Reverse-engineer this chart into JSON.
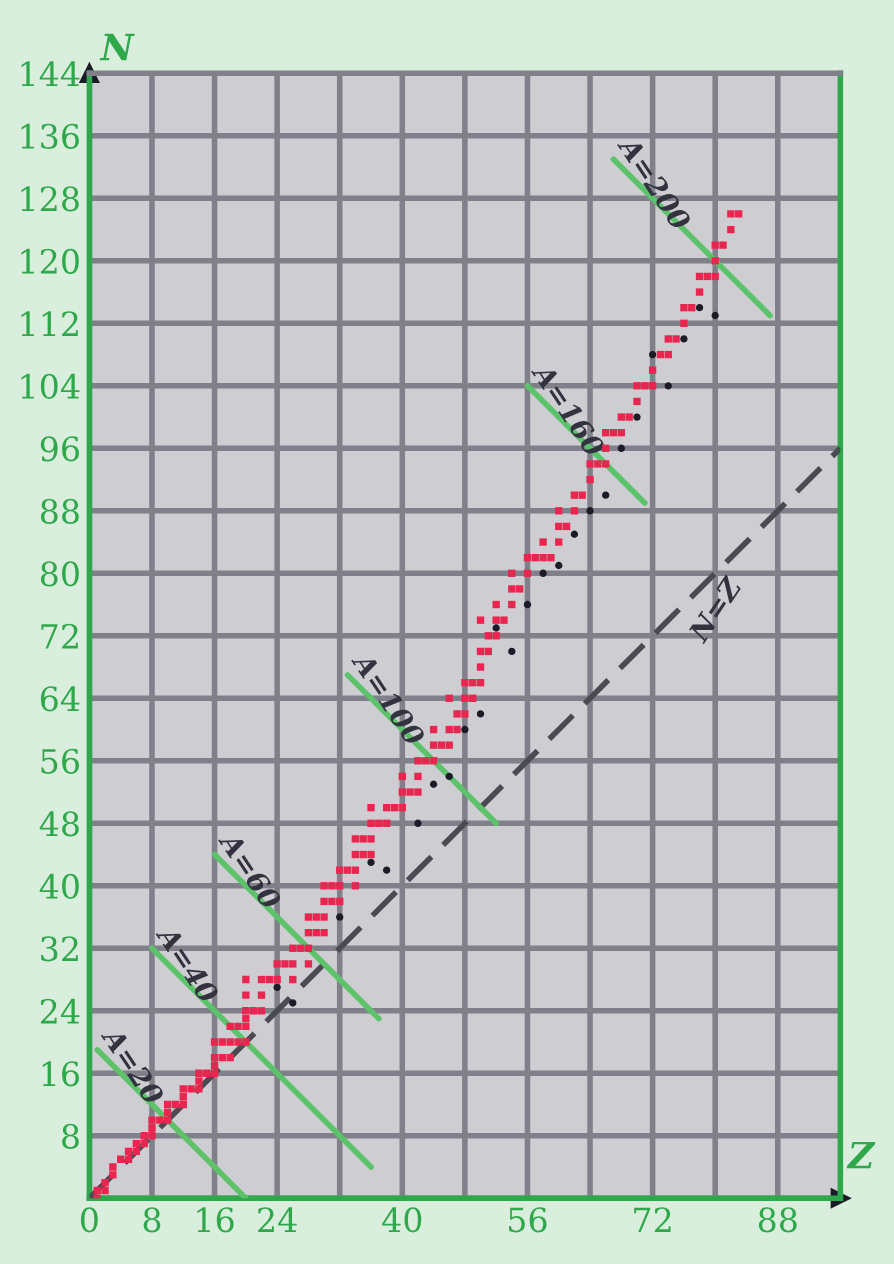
{
  "chart_data": {
    "type": "scatter",
    "xlabel": "Z",
    "ylabel": "N",
    "xlim": [
      0,
      96
    ],
    "ylim": [
      0,
      144
    ],
    "xticks": [
      0,
      8,
      16,
      24,
      {
        "value": 32,
        "label": null
      },
      40,
      {
        "value": 48,
        "label": null
      },
      56,
      {
        "value": 64,
        "label": null
      },
      72,
      {
        "value": 80,
        "label": null
      },
      88
    ],
    "yticks": [
      {
        "value": 0,
        "label": null
      },
      8,
      16,
      24,
      32,
      40,
      48,
      56,
      64,
      72,
      80,
      88,
      96,
      104,
      112,
      120,
      128,
      136,
      144
    ],
    "grid": true,
    "legend": false,
    "marker": "square",
    "series": [
      {
        "type": "line",
        "name": "N=Z",
        "color": "#4a4a52",
        "line_style": "dashed",
        "marker": "none",
        "x": [
          0,
          96
        ],
        "values": [
          0,
          96
        ]
      },
      {
        "type": "line",
        "name": "A=20",
        "color": "#5cc36a",
        "marker": "none",
        "x": [
          1,
          20
        ],
        "values": [
          19,
          0
        ]
      },
      {
        "type": "line",
        "name": "A=40",
        "color": "#5cc36a",
        "marker": "none",
        "x": [
          8,
          36
        ],
        "values": [
          32,
          4
        ]
      },
      {
        "type": "line",
        "name": "A=60",
        "color": "#5cc36a",
        "marker": "none",
        "x": [
          16,
          37
        ],
        "values": [
          44,
          23
        ]
      },
      {
        "type": "line",
        "name": "A=100",
        "color": "#5cc36a",
        "marker": "none",
        "x": [
          33,
          52
        ],
        "values": [
          67,
          48
        ]
      },
      {
        "type": "line",
        "name": "A=160",
        "color": "#5cc36a",
        "marker": "none",
        "x": [
          56,
          71
        ],
        "values": [
          104,
          89
        ]
      },
      {
        "type": "line",
        "name": "A=200",
        "color": "#5cc36a",
        "marker": "none",
        "x": [
          67,
          87
        ],
        "values": [
          133,
          113
        ]
      },
      {
        "type": "scatter",
        "color": "#1c1c28",
        "marker": "circle",
        "x": [
          24,
          26,
          32,
          36,
          38,
          42,
          44,
          46,
          48,
          50,
          52,
          54,
          56,
          58,
          60,
          62,
          64,
          66,
          68,
          70,
          72,
          74,
          76,
          78,
          80
        ],
        "values": [
          27,
          25,
          36,
          43,
          42,
          48,
          53,
          54,
          60,
          62,
          73,
          70,
          76,
          80,
          81,
          85,
          88,
          90,
          96,
          100,
          108,
          104,
          110,
          114,
          113
        ]
      },
      {
        "color": "#e8264f",
        "x": [
          1,
          1,
          2,
          2,
          3,
          3,
          4,
          5,
          5,
          6,
          6,
          7,
          7,
          8,
          8,
          8,
          9,
          10,
          10,
          10,
          11,
          12,
          12,
          12,
          13,
          14,
          14,
          14,
          15,
          16,
          16,
          16,
          16,
          17,
          17,
          18,
          18,
          18,
          19,
          19,
          20,
          20,
          20,
          20,
          20,
          20,
          21,
          22,
          22,
          22,
          23,
          24,
          24,
          25,
          26,
          26,
          26,
          27,
          28,
          28,
          28,
          28,
          29,
          29,
          30,
          30,
          30,
          30,
          31,
          31,
          32,
          32,
          32,
          33,
          34,
          34,
          34,
          34,
          35,
          35,
          36,
          36,
          36,
          36,
          37,
          38,
          38,
          39,
          40,
          40,
          40,
          41,
          42,
          42,
          42,
          43,
          44,
          44,
          44,
          45,
          46,
          46,
          46,
          47,
          47,
          48,
          48,
          48,
          49,
          49,
          50,
          50,
          50,
          50,
          51,
          51,
          52,
          52,
          52,
          53,
          54,
          54,
          54,
          55,
          56,
          56,
          57,
          58,
          58,
          59,
          60,
          60,
          60,
          61,
          62,
          62,
          63,
          64,
          64,
          65,
          66,
          66,
          66,
          67,
          68,
          68,
          69,
          70,
          70,
          71,
          72,
          72,
          73,
          74,
          74,
          75,
          76,
          76,
          77,
          78,
          78,
          79,
          80,
          80,
          80,
          81,
          82,
          82,
          83
        ],
        "values": [
          0,
          1,
          1,
          2,
          3,
          4,
          5,
          5,
          6,
          6,
          7,
          7,
          8,
          8,
          9,
          10,
          10,
          10,
          11,
          12,
          12,
          12,
          13,
          14,
          14,
          14,
          15,
          16,
          16,
          16,
          17,
          18,
          20,
          18,
          20,
          18,
          20,
          22,
          20,
          22,
          20,
          22,
          23,
          24,
          26,
          28,
          24,
          24,
          26,
          28,
          28,
          28,
          30,
          30,
          28,
          30,
          32,
          32,
          30,
          32,
          34,
          36,
          34,
          36,
          34,
          36,
          38,
          40,
          38,
          40,
          38,
          40,
          42,
          42,
          40,
          42,
          44,
          46,
          44,
          46,
          44,
          46,
          48,
          50,
          48,
          48,
          50,
          50,
          50,
          52,
          54,
          52,
          52,
          54,
          56,
          56,
          56,
          58,
          60,
          58,
          58,
          60,
          64,
          60,
          62,
          62,
          64,
          66,
          64,
          66,
          66,
          68,
          70,
          74,
          70,
          72,
          72,
          74,
          76,
          74,
          76,
          78,
          80,
          78,
          80,
          82,
          82,
          82,
          84,
          82,
          84,
          86,
          88,
          86,
          88,
          90,
          90,
          92,
          94,
          94,
          94,
          96,
          98,
          98,
          98,
          100,
          100,
          102,
          104,
          104,
          104,
          106,
          108,
          108,
          110,
          110,
          112,
          114,
          114,
          116,
          118,
          118,
          118,
          120,
          122,
          122,
          124,
          126,
          126
        ]
      }
    ]
  }
}
